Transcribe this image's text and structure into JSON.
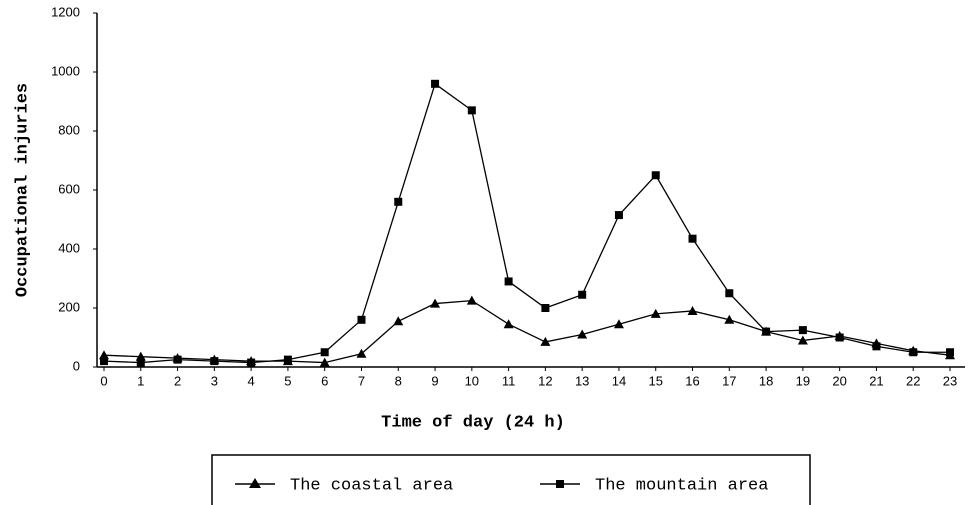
{
  "chart_data": {
    "type": "line",
    "xlabel": "Time of day (24 h)",
    "ylabel": "Occupational injuries",
    "categories": [
      "0",
      "1",
      "2",
      "3",
      "4",
      "5",
      "6",
      "7",
      "8",
      "9",
      "10",
      "11",
      "12",
      "13",
      "14",
      "15",
      "16",
      "17",
      "18",
      "19",
      "20",
      "21",
      "22",
      "23"
    ],
    "series": [
      {
        "name": "The coastal area",
        "color": "#000000",
        "marker": "triangle",
        "values": [
          40,
          35,
          30,
          25,
          20,
          20,
          15,
          45,
          155,
          215,
          225,
          145,
          85,
          110,
          145,
          180,
          190,
          160,
          120,
          90,
          105,
          80,
          55,
          40
        ]
      },
      {
        "name": "The mountain area",
        "color": "#000000",
        "marker": "square",
        "values": [
          20,
          15,
          25,
          20,
          15,
          25,
          50,
          160,
          560,
          960,
          870,
          290,
          200,
          245,
          515,
          650,
          435,
          250,
          120,
          125,
          100,
          70,
          50,
          50
        ]
      }
    ],
    "ylim": [
      0,
      1200
    ],
    "yticks": [
      0,
      200,
      400,
      600,
      800,
      1000,
      1200
    ],
    "grid": false
  }
}
